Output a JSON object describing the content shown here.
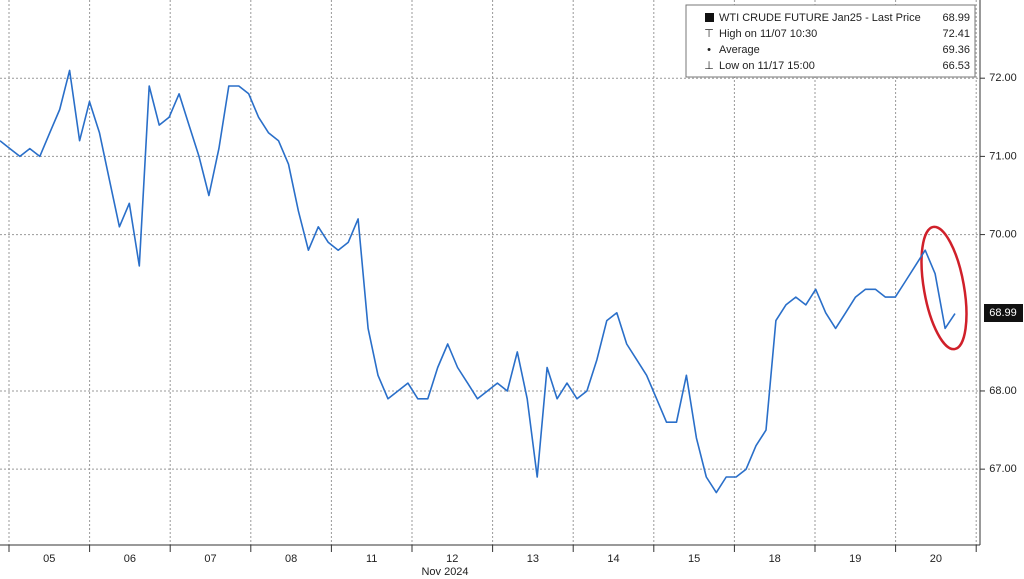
{
  "chart_data": {
    "type": "line",
    "x_labels": [
      "05",
      "06",
      "07",
      "08",
      "11",
      "12",
      "13",
      "14",
      "15",
      "18",
      "19",
      "20"
    ],
    "x_sublabel": "Nov 2024",
    "series": [
      {
        "name": "WTI CRUDE FUTURE Jan25 - Last Price",
        "color": "#2a6fc9",
        "values": [
          71.2,
          71.1,
          71.0,
          71.1,
          71.0,
          71.3,
          71.6,
          72.1,
          71.2,
          71.7,
          71.3,
          70.7,
          70.1,
          70.4,
          69.6,
          71.9,
          71.4,
          71.5,
          71.8,
          71.4,
          71.0,
          70.5,
          71.1,
          71.9,
          71.9,
          71.8,
          71.5,
          71.3,
          71.2,
          70.9,
          70.3,
          69.8,
          70.1,
          69.9,
          69.8,
          69.9,
          70.2,
          68.8,
          68.2,
          67.9,
          68.0,
          68.1,
          67.9,
          67.9,
          68.3,
          68.6,
          68.3,
          68.1,
          67.9,
          68.0,
          68.1,
          68.0,
          68.5,
          67.9,
          66.9,
          68.3,
          67.9,
          68.1,
          67.9,
          68.0,
          68.4,
          68.9,
          69.0,
          68.6,
          68.4,
          68.2,
          67.9,
          67.6,
          67.6,
          68.2,
          67.4,
          66.9,
          66.7,
          66.9,
          66.9,
          67.0,
          67.3,
          67.5,
          68.9,
          69.1,
          69.2,
          69.1,
          69.3,
          69.0,
          68.8,
          69.0,
          69.2,
          69.3,
          69.3,
          69.2,
          69.2,
          69.4,
          69.6,
          69.8,
          69.5,
          68.8,
          68.99
        ]
      }
    ],
    "last_price": 68.99,
    "legend_stats": [
      {
        "label": "High on 11/07 10:30",
        "value": 72.41
      },
      {
        "label": "Average",
        "value": 69.36
      },
      {
        "label": "Low on 11/17 15:00",
        "value": 66.53
      }
    ],
    "ylim": [
      66.03,
      73.0
    ],
    "yticks": [
      {
        "value": 67,
        "label": "67.00"
      },
      {
        "value": 68,
        "label": "68.00"
      },
      {
        "value": 70,
        "label": "70.00"
      },
      {
        "value": 71,
        "label": "71.00"
      },
      {
        "value": 72,
        "label": "72.00"
      }
    ],
    "grid": true
  }
}
